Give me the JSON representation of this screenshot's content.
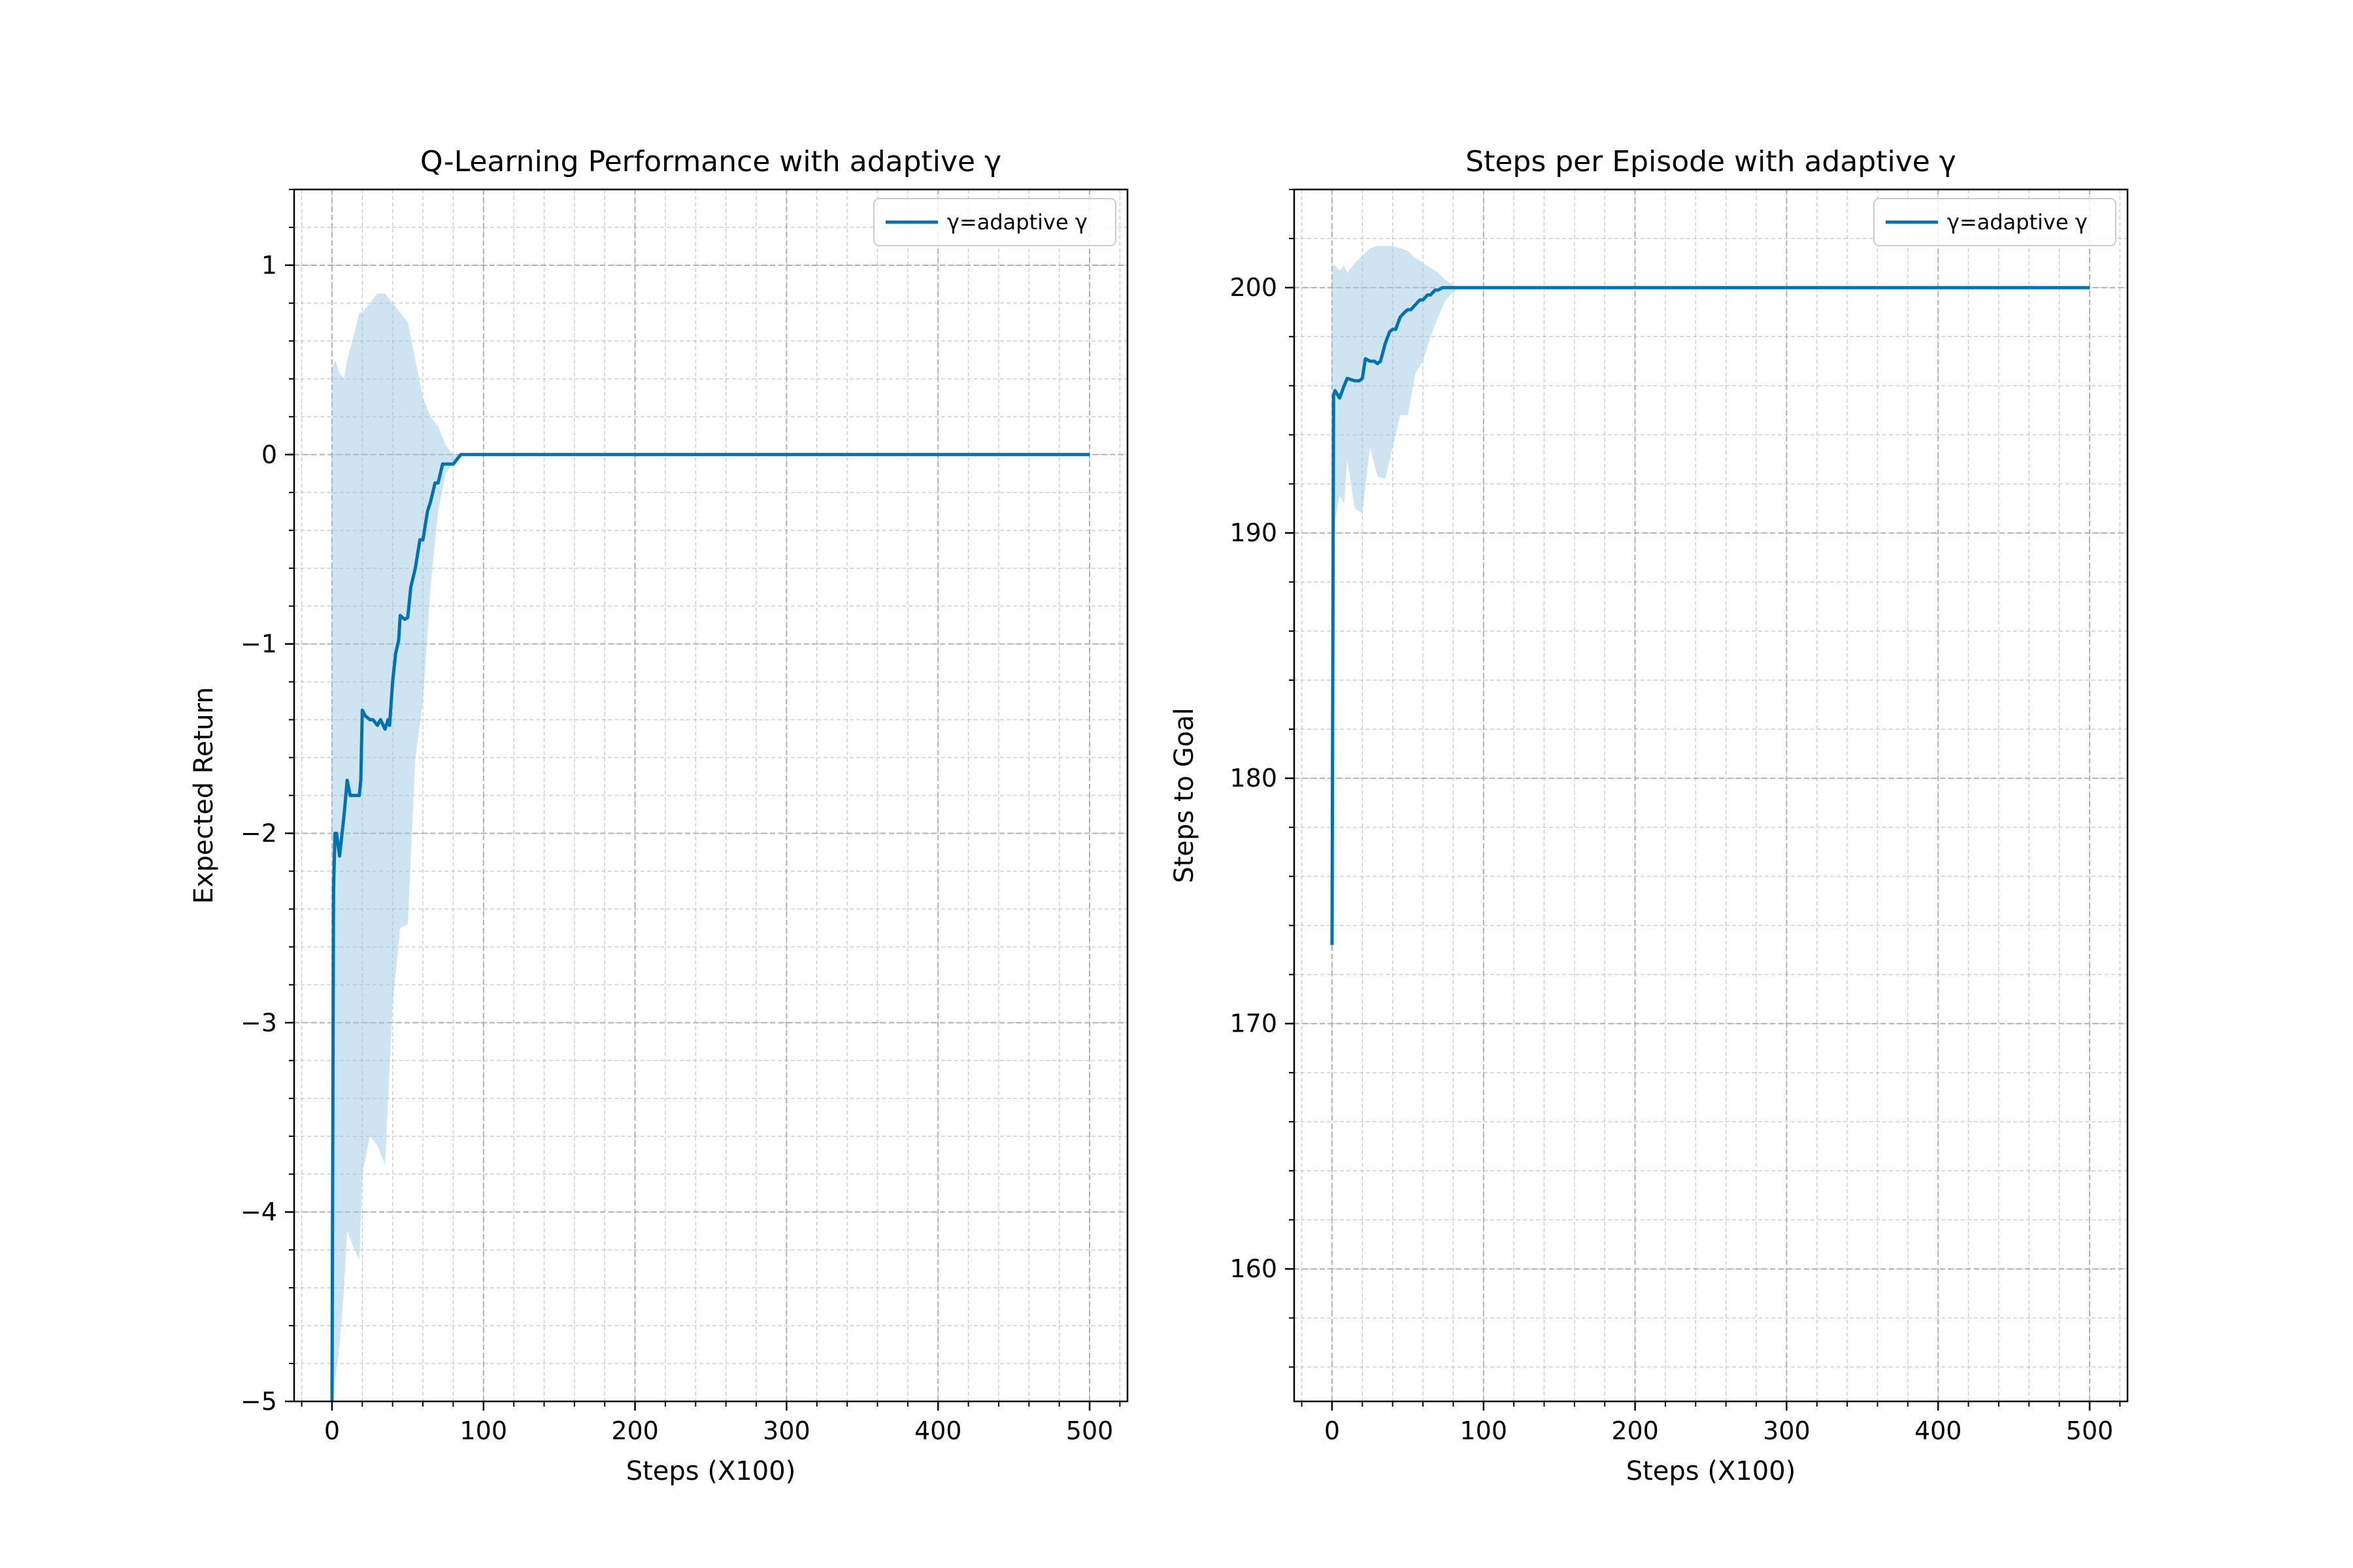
{
  "colors": {
    "line": "#0072B2",
    "band": "#9ecae1",
    "grid": "#b0b0b0"
  },
  "chart_data": [
    {
      "type": "line",
      "title": "Q-Learning Performance with adaptive γ",
      "xlabel": "Steps (X100)",
      "ylabel": "Expected Return",
      "xlim": [
        -25,
        525
      ],
      "ylim": [
        -5,
        1.4
      ],
      "xticks": [
        0,
        100,
        200,
        300,
        400,
        500
      ],
      "xtick_labels": [
        "0",
        "100",
        "200",
        "300",
        "400",
        "500"
      ],
      "xminor_step": 20,
      "yticks": [
        -5,
        -4,
        -3,
        -2,
        -1,
        0,
        1
      ],
      "ytick_labels": [
        "−5",
        "−4",
        "−3",
        "−2",
        "−1",
        "0",
        "1"
      ],
      "yminor_step": 0.2,
      "grid": true,
      "legend": {
        "position": "top-right",
        "label": "γ=adaptive γ"
      },
      "series": [
        {
          "name": "γ=adaptive γ",
          "x": [
            0,
            1,
            2,
            3,
            5,
            8,
            10,
            12,
            15,
            18,
            19,
            20,
            22,
            25,
            27,
            30,
            32,
            35,
            37,
            38,
            40,
            42,
            44,
            45,
            48,
            50,
            52,
            55,
            58,
            60,
            63,
            65,
            68,
            70,
            73,
            75,
            78,
            80,
            85,
            88,
            100,
            200,
            300,
            400,
            500
          ],
          "y": [
            -5,
            -2.3,
            -2.0,
            -2.0,
            -2.12,
            -1.9,
            -1.72,
            -1.8,
            -1.8,
            -1.8,
            -1.72,
            -1.35,
            -1.38,
            -1.4,
            -1.4,
            -1.43,
            -1.4,
            -1.45,
            -1.4,
            -1.43,
            -1.2,
            -1.05,
            -0.98,
            -0.85,
            -0.87,
            -0.86,
            -0.7,
            -0.6,
            -0.45,
            -0.45,
            -0.3,
            -0.25,
            -0.15,
            -0.15,
            -0.05,
            -0.05,
            -0.05,
            -0.05,
            0,
            0,
            0,
            0,
            0,
            0,
            0
          ]
        }
      ],
      "band": {
        "x": [
          0,
          2,
          5,
          8,
          10,
          15,
          18,
          20,
          25,
          30,
          35,
          40,
          45,
          50,
          55,
          60,
          65,
          70,
          75,
          80,
          85
        ],
        "upper": [
          0.45,
          0.5,
          0.43,
          0.4,
          0.5,
          0.65,
          0.75,
          0.75,
          0.8,
          0.85,
          0.85,
          0.8,
          0.75,
          0.7,
          0.5,
          0.3,
          0.2,
          0.15,
          0.05,
          0.0,
          0.0
        ],
        "lower": [
          -5.0,
          -4.9,
          -4.7,
          -4.4,
          -4.1,
          -4.2,
          -4.25,
          -3.8,
          -3.6,
          -3.65,
          -3.75,
          -2.9,
          -2.5,
          -2.48,
          -1.6,
          -1.3,
          -0.7,
          -0.3,
          -0.1,
          -0.05,
          0.0
        ]
      }
    },
    {
      "type": "line",
      "title": "Steps per Episode with adaptive γ",
      "xlabel": "Steps (X100)",
      "ylabel": "Steps to Goal",
      "xlim": [
        -25,
        525
      ],
      "ylim": [
        154.6,
        204
      ],
      "xticks": [
        0,
        100,
        200,
        300,
        400,
        500
      ],
      "xtick_labels": [
        "0",
        "100",
        "200",
        "300",
        "400",
        "500"
      ],
      "xminor_step": 20,
      "yticks": [
        160,
        170,
        180,
        190,
        200
      ],
      "ytick_labels": [
        "160",
        "170",
        "180",
        "190",
        "200"
      ],
      "yminor_step": 2,
      "grid": true,
      "legend": {
        "position": "top-right",
        "label": "γ=adaptive γ"
      },
      "series": [
        {
          "name": "γ=adaptive γ",
          "x": [
            0,
            1,
            2,
            5,
            8,
            10,
            15,
            18,
            20,
            22,
            25,
            28,
            30,
            32,
            35,
            38,
            40,
            42,
            45,
            48,
            50,
            52,
            55,
            58,
            60,
            63,
            65,
            68,
            70,
            73,
            75,
            80,
            85,
            90,
            100,
            200,
            300,
            400,
            500
          ],
          "y": [
            173.2,
            195.6,
            195.8,
            195.5,
            196,
            196.3,
            196.2,
            196.2,
            196.3,
            197.1,
            197.0,
            197.0,
            196.9,
            197.0,
            197.7,
            198.2,
            198.3,
            198.3,
            198.8,
            199.0,
            199.1,
            199.1,
            199.3,
            199.5,
            199.5,
            199.7,
            199.7,
            199.9,
            199.9,
            200,
            200,
            200,
            200,
            200,
            200,
            200,
            200,
            200,
            200
          ]
        }
      ],
      "band": {
        "x": [
          0,
          2,
          5,
          8,
          10,
          15,
          20,
          25,
          30,
          35,
          40,
          45,
          50,
          55,
          60,
          65,
          70,
          75,
          80,
          85
        ],
        "upper": [
          200.9,
          200.9,
          200.7,
          200.9,
          200.6,
          201.0,
          201.3,
          201.6,
          201.7,
          201.7,
          201.7,
          201.6,
          201.5,
          201.2,
          201.0,
          200.8,
          200.6,
          200.3,
          200.1,
          200.0
        ],
        "lower": [
          190.0,
          190.5,
          191.5,
          191.2,
          193.0,
          191.0,
          190.8,
          193.5,
          192.3,
          192.2,
          193.5,
          194.8,
          194.8,
          196.5,
          197.0,
          198.0,
          198.8,
          199.5,
          199.8,
          200.0
        ]
      }
    }
  ]
}
